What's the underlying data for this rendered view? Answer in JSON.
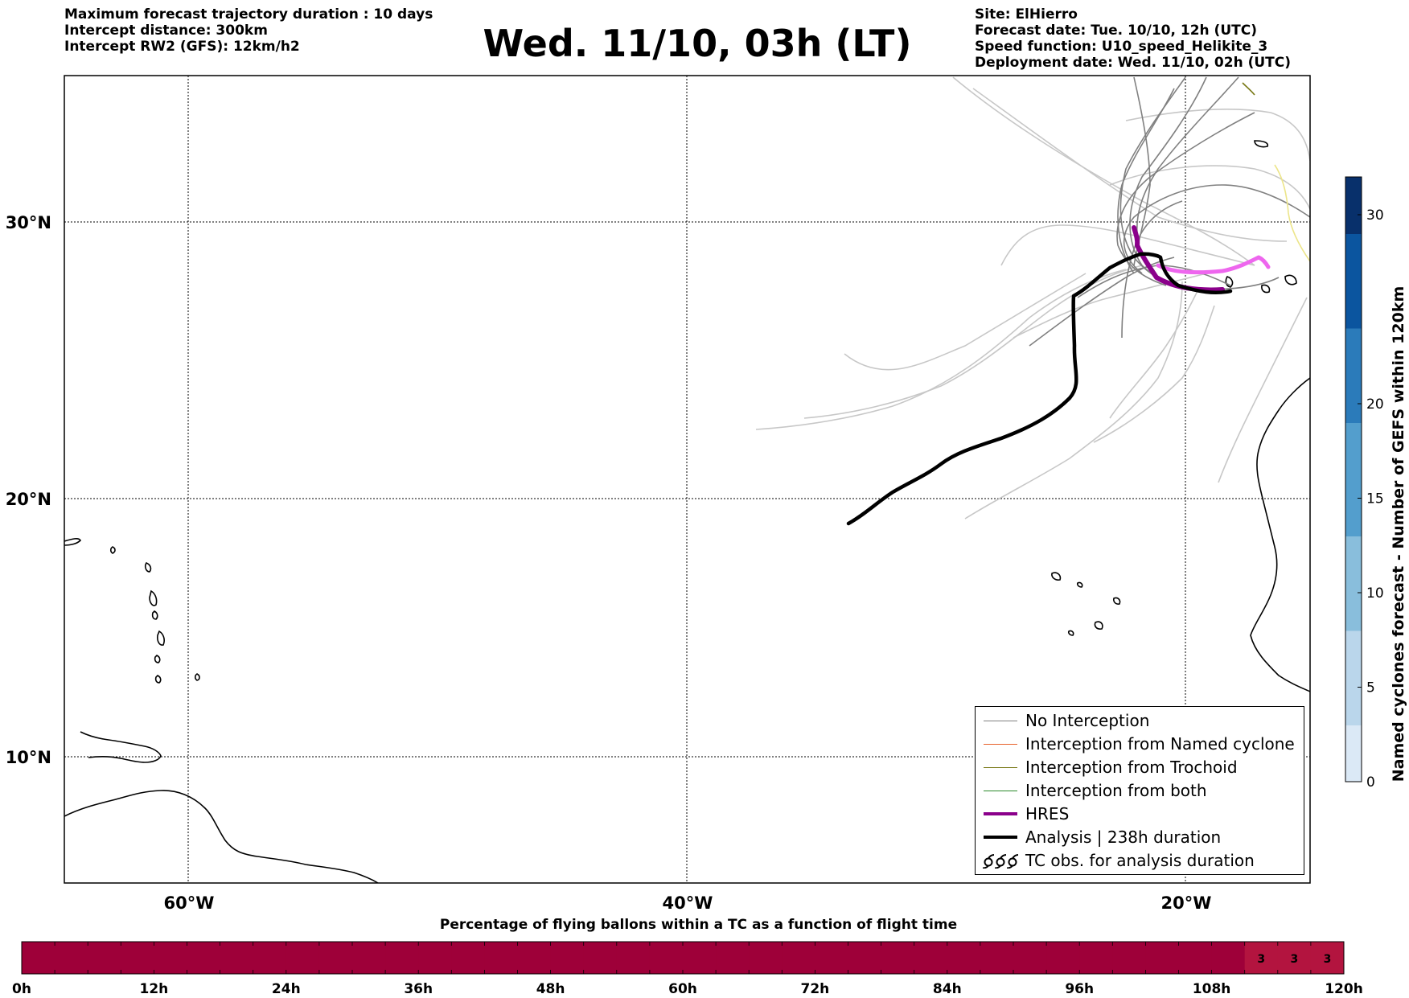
{
  "header_left": [
    "Maximum forecast trajectory duration : 10 days",
    "Intercept distance: 300km",
    "Intercept RW2 (GFS):  12km/h2"
  ],
  "title": "Wed. 11/10, 03h (LT)",
  "header_right": [
    "Site: ElHierro",
    "Forecast date: Tue. 10/10, 12h (UTC)",
    "Speed function: U10_speed_Helikite_3",
    "Deployment date: Wed. 11/10, 02h (UTC)"
  ],
  "map": {
    "lat_labels": [
      "30°N",
      "20°N",
      "10°N"
    ],
    "lon_labels": [
      "60°W",
      "40°W",
      "20°W"
    ],
    "lon_range": [
      -65,
      -15
    ],
    "lat_range": [
      5.5,
      34.7
    ],
    "grid": "dotted"
  },
  "legend": {
    "items": [
      {
        "label": "No Interception",
        "color": "#808080",
        "style": "thin"
      },
      {
        "label": "Interception from Named cyclone",
        "color": "#e8622b",
        "style": "thin"
      },
      {
        "label": "Interception from Trochoid",
        "color": "#7a7a18",
        "style": "thin"
      },
      {
        "label": "Interception from both",
        "color": "#2a8a2a",
        "style": "thin"
      },
      {
        "label": "HRES",
        "color": "#8b008b",
        "style": "thick"
      },
      {
        "label": "Analysis | 238h duration",
        "color": "#000000",
        "style": "thick"
      },
      {
        "label": "TC obs. for analysis duration",
        "icon": "cyclone-symbols-icon"
      }
    ]
  },
  "colorbar": {
    "label": "Named cyclones forecast - Number of GEFS within 120km",
    "ticks": [
      "0",
      "5",
      "10",
      "15",
      "20",
      "30"
    ],
    "tick_values": [
      0,
      5,
      10,
      15,
      20,
      30
    ],
    "max": 32,
    "colors_low_to_high": [
      "#dbe9f6",
      "#bad6eb",
      "#89bedc",
      "#539ecd",
      "#2b7bba",
      "#0b559f",
      "#08306b"
    ]
  },
  "bottom_bar": {
    "title": "Percentage of flying ballons within a TC as a function of flight time",
    "ticks": [
      "0h",
      "12h",
      "24h",
      "36h",
      "48h",
      "60h",
      "72h",
      "84h",
      "96h",
      "108h",
      "120h"
    ],
    "segment_hours": 3,
    "base_color": "#9e0039",
    "highlight_color": "#b3143f",
    "labels": [
      {
        "start_h": 111,
        "end_h": 114,
        "text": "3"
      },
      {
        "start_h": 114,
        "end_h": 117,
        "text": "3"
      },
      {
        "start_h": 117,
        "end_h": 120,
        "text": "3"
      }
    ]
  }
}
